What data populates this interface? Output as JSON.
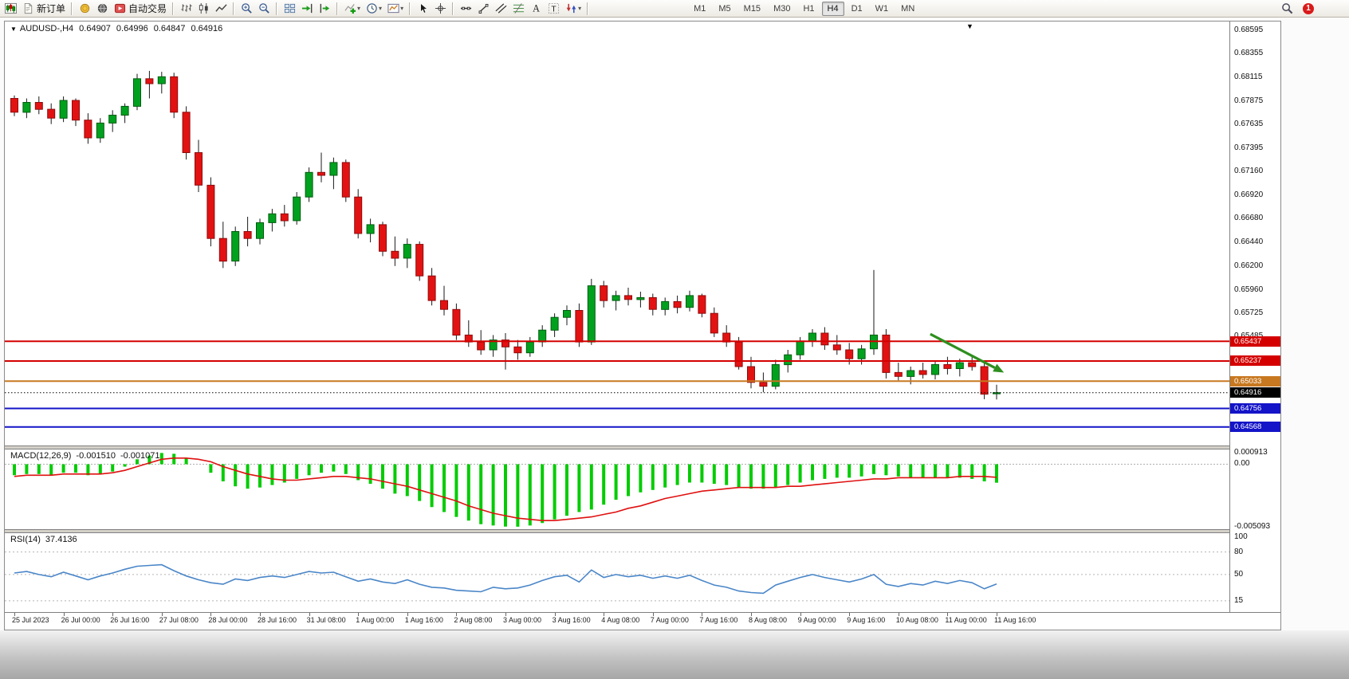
{
  "toolbar": {
    "badge_count": "1",
    "left_items": [
      {
        "name": "new-chart-button",
        "icon": "chart-candles"
      },
      {
        "name": "new-order-button",
        "icon": "doc-new",
        "label": "新订单"
      },
      {
        "sep": true
      },
      {
        "name": "quotes-button",
        "icon": "coin"
      },
      {
        "name": "community-button",
        "icon": "globe"
      },
      {
        "name": "autotrading-button",
        "icon": "autotrade",
        "label": "自动交易"
      },
      {
        "sep": true
      },
      {
        "name": "bars-mode-button",
        "icon": "bars-mode"
      },
      {
        "name": "candles-mode-button",
        "icon": "candles-mode"
      },
      {
        "name": "line-mode-button",
        "icon": "line-mode"
      },
      {
        "sep": true
      },
      {
        "name": "zoom-in-button",
        "icon": "zoom-in"
      },
      {
        "name": "zoom-out-button",
        "icon": "zoom-out"
      },
      {
        "sep": true
      },
      {
        "name": "tile-windows-button",
        "icon": "tiles"
      },
      {
        "name": "auto-scroll-button",
        "icon": "autoscroll"
      },
      {
        "name": "chart-shift-button",
        "icon": "chart-shift"
      },
      {
        "sep": true
      },
      {
        "name": "indicators-button",
        "icon": "indicator-plus",
        "dropdown": true
      },
      {
        "name": "periods-button",
        "icon": "clock",
        "dropdown": true
      },
      {
        "name": "templates-button",
        "icon": "template",
        "dropdown": true
      },
      {
        "sep": true
      },
      {
        "name": "cursor-button",
        "icon": "cursor"
      },
      {
        "name": "crosshair-button",
        "icon": "crosshair"
      },
      {
        "sep": true
      },
      {
        "name": "horizontal-line-button",
        "icon": "hline"
      },
      {
        "name": "trendline-button",
        "icon": "trendline"
      },
      {
        "name": "channel-button",
        "icon": "channel"
      },
      {
        "name": "fibonacci-button",
        "icon": "fibo"
      },
      {
        "name": "text-button",
        "icon": "text-a"
      },
      {
        "name": "label-button",
        "icon": "label-t"
      },
      {
        "name": "arrows-button",
        "icon": "arrows",
        "dropdown": true
      },
      {
        "sep": true
      }
    ],
    "timeframes": {
      "items": [
        {
          "label": "M1"
        },
        {
          "label": "M5"
        },
        {
          "label": "M15"
        },
        {
          "label": "M30"
        },
        {
          "label": "H1"
        },
        {
          "label": "H4",
          "active": true
        },
        {
          "label": "D1"
        },
        {
          "label": "W1"
        },
        {
          "label": "MN"
        }
      ]
    },
    "right_items": [
      {
        "name": "search-button",
        "icon": "magnifier"
      },
      {
        "name": "notifications-badge",
        "badge": true
      }
    ]
  },
  "chart_data": {
    "type": "candlestick",
    "title_display": "AUDUSD-,H4",
    "ohlc_display": {
      "open": "0.64907",
      "high": "0.64996",
      "low": "0.64847",
      "close": "0.64916"
    },
    "price_range": [
      0.6438,
      0.6868
    ],
    "price_axis_labels": [
      "0.68595",
      "0.68355",
      "0.68115",
      "0.67875",
      "0.67635",
      "0.67395",
      "0.67160",
      "0.66920",
      "0.66680",
      "0.66440",
      "0.66200",
      "0.65960",
      "0.65725",
      "0.65485"
    ],
    "time_labels": [
      "25 Jul 2023",
      "26 Jul 00:00",
      "26 Jul 16:00",
      "27 Jul 08:00",
      "28 Jul 00:00",
      "28 Jul 16:00",
      "31 Jul 08:00",
      "1 Aug 00:00",
      "1 Aug 16:00",
      "2 Aug 08:00",
      "3 Aug 00:00",
      "3 Aug 16:00",
      "4 Aug 08:00",
      "7 Aug 00:00",
      "7 Aug 16:00",
      "8 Aug 08:00",
      "9 Aug 00:00",
      "9 Aug 16:00",
      "10 Aug 08:00",
      "11 Aug 00:00",
      "11 Aug 16:00"
    ],
    "bars_per_time_label": 4,
    "colors": {
      "bull": "#00a11e",
      "bear": "#e31212",
      "bull_edge": "#005c10",
      "bear_edge": "#8f0b0b",
      "wick": "#1a1a1a"
    },
    "price_lines": [
      {
        "value": "0.65437",
        "price": 0.65437,
        "color": "#d40000",
        "width": 2,
        "style": "solid"
      },
      {
        "value": "0.65237",
        "price": 0.65237,
        "color": "#d40000",
        "width": 2,
        "style": "solid"
      },
      {
        "value": "0.65033",
        "price": 0.65033,
        "color": "#c87820",
        "width": 2,
        "style": "solid"
      },
      {
        "value": "0.64756",
        "price": 0.64756,
        "color": "#1414c8",
        "width": 2,
        "style": "solid"
      },
      {
        "value": "0.64568",
        "price": 0.64568,
        "color": "#1414c8",
        "width": 2,
        "style": "solid"
      }
    ],
    "current_price": {
      "value": "0.64916",
      "price": 0.64916,
      "color": "#000000"
    },
    "trend_arrow": {
      "from_bar": 74.6,
      "from_price": 0.6551,
      "to_bar": 80.6,
      "to_price": 0.6512,
      "color": "#2e8f1e"
    },
    "candles": [
      [
        0.679,
        0.6793,
        0.6772,
        0.6776
      ],
      [
        0.6776,
        0.679,
        0.677,
        0.6786
      ],
      [
        0.6786,
        0.6792,
        0.6774,
        0.6779
      ],
      [
        0.6779,
        0.6785,
        0.6764,
        0.677
      ],
      [
        0.677,
        0.6792,
        0.6766,
        0.6788
      ],
      [
        0.6788,
        0.679,
        0.6762,
        0.6768
      ],
      [
        0.6768,
        0.6775,
        0.6744,
        0.675
      ],
      [
        0.675,
        0.677,
        0.6745,
        0.6765
      ],
      [
        0.6765,
        0.6778,
        0.6756,
        0.6773
      ],
      [
        0.6773,
        0.6785,
        0.6765,
        0.6782
      ],
      [
        0.6782,
        0.6815,
        0.6778,
        0.681
      ],
      [
        0.681,
        0.6818,
        0.679,
        0.6805
      ],
      [
        0.6805,
        0.6817,
        0.6795,
        0.6812
      ],
      [
        0.6812,
        0.6816,
        0.677,
        0.6776
      ],
      [
        0.6776,
        0.6782,
        0.6728,
        0.6735
      ],
      [
        0.6735,
        0.6748,
        0.6695,
        0.6702
      ],
      [
        0.6702,
        0.671,
        0.664,
        0.6648
      ],
      [
        0.6648,
        0.6665,
        0.6618,
        0.6625
      ],
      [
        0.6625,
        0.666,
        0.662,
        0.6655
      ],
      [
        0.6655,
        0.667,
        0.664,
        0.6648
      ],
      [
        0.6648,
        0.6668,
        0.6642,
        0.6664
      ],
      [
        0.6664,
        0.6678,
        0.6655,
        0.6673
      ],
      [
        0.6673,
        0.6682,
        0.666,
        0.6666
      ],
      [
        0.6666,
        0.6695,
        0.6662,
        0.669
      ],
      [
        0.669,
        0.672,
        0.6685,
        0.6715
      ],
      [
        0.6715,
        0.6735,
        0.6705,
        0.6712
      ],
      [
        0.6712,
        0.673,
        0.6698,
        0.6725
      ],
      [
        0.6725,
        0.6728,
        0.6685,
        0.669
      ],
      [
        0.669,
        0.6698,
        0.6648,
        0.6653
      ],
      [
        0.6653,
        0.6668,
        0.6644,
        0.6662
      ],
      [
        0.6662,
        0.6665,
        0.663,
        0.6635
      ],
      [
        0.6635,
        0.665,
        0.662,
        0.6628
      ],
      [
        0.6628,
        0.6648,
        0.6618,
        0.6642
      ],
      [
        0.6642,
        0.6645,
        0.6605,
        0.661
      ],
      [
        0.661,
        0.6618,
        0.658,
        0.6585
      ],
      [
        0.6585,
        0.66,
        0.657,
        0.6576
      ],
      [
        0.6576,
        0.6582,
        0.6545,
        0.655
      ],
      [
        0.655,
        0.6565,
        0.6538,
        0.6543
      ],
      [
        0.6543,
        0.6555,
        0.653,
        0.6535
      ],
      [
        0.6535,
        0.655,
        0.6528,
        0.6545
      ],
      [
        0.6545,
        0.6552,
        0.6515,
        0.6538
      ],
      [
        0.6538,
        0.6545,
        0.6525,
        0.6532
      ],
      [
        0.6532,
        0.6548,
        0.6528,
        0.6543
      ],
      [
        0.6543,
        0.656,
        0.6538,
        0.6555
      ],
      [
        0.6555,
        0.6572,
        0.6548,
        0.6568
      ],
      [
        0.6568,
        0.658,
        0.656,
        0.6575
      ],
      [
        0.6575,
        0.6582,
        0.6538,
        0.6543
      ],
      [
        0.6543,
        0.6607,
        0.654,
        0.66
      ],
      [
        0.66,
        0.6605,
        0.6578,
        0.6585
      ],
      [
        0.6585,
        0.6595,
        0.6575,
        0.659
      ],
      [
        0.659,
        0.6598,
        0.658,
        0.6586
      ],
      [
        0.6586,
        0.6594,
        0.6578,
        0.6588
      ],
      [
        0.6588,
        0.6592,
        0.657,
        0.6576
      ],
      [
        0.6576,
        0.6588,
        0.657,
        0.6584
      ],
      [
        0.6584,
        0.659,
        0.6572,
        0.6578
      ],
      [
        0.6578,
        0.6595,
        0.6574,
        0.659
      ],
      [
        0.659,
        0.6592,
        0.6568,
        0.6572
      ],
      [
        0.6572,
        0.6578,
        0.6548,
        0.6552
      ],
      [
        0.6552,
        0.656,
        0.6538,
        0.6543
      ],
      [
        0.6543,
        0.6548,
        0.6515,
        0.6518
      ],
      [
        0.6518,
        0.6528,
        0.6496,
        0.6502
      ],
      [
        0.6502,
        0.6512,
        0.6492,
        0.6498
      ],
      [
        0.6498,
        0.6525,
        0.6495,
        0.652
      ],
      [
        0.652,
        0.6535,
        0.6512,
        0.653
      ],
      [
        0.653,
        0.6548,
        0.6525,
        0.6544
      ],
      [
        0.6544,
        0.6556,
        0.6538,
        0.6552
      ],
      [
        0.6552,
        0.6558,
        0.6535,
        0.654
      ],
      [
        0.654,
        0.655,
        0.653,
        0.6535
      ],
      [
        0.6535,
        0.6542,
        0.652,
        0.6526
      ],
      [
        0.6526,
        0.654,
        0.652,
        0.6536
      ],
      [
        0.6536,
        0.6616,
        0.653,
        0.655
      ],
      [
        0.655,
        0.6556,
        0.6506,
        0.6512
      ],
      [
        0.6512,
        0.6522,
        0.6504,
        0.6508
      ],
      [
        0.6508,
        0.6518,
        0.65,
        0.6514
      ],
      [
        0.6514,
        0.6522,
        0.6506,
        0.651
      ],
      [
        0.651,
        0.6524,
        0.6505,
        0.652
      ],
      [
        0.652,
        0.6528,
        0.651,
        0.6516
      ],
      [
        0.6516,
        0.6526,
        0.6508,
        0.6522
      ],
      [
        0.6522,
        0.653,
        0.6514,
        0.6518
      ],
      [
        0.6518,
        0.6524,
        0.6485,
        0.649
      ],
      [
        0.64907,
        0.64996,
        0.64847,
        0.64916
      ]
    ],
    "indicators": {
      "macd": {
        "label": "MACD(12,26,9)",
        "value_main": "-0.001510",
        "value_signal": "-0.001071",
        "axis_labels": [
          "0.000913",
          "0.00",
          "-0.005093"
        ],
        "range": [
          -0.0053,
          0.0012
        ],
        "histogram_color": "#00cc00",
        "signal_color": "#e01010",
        "histogram": [
          -0.0009,
          -0.0008,
          -0.0008,
          -0.0009,
          -0.0007,
          -0.0007,
          -0.0009,
          -0.0008,
          -0.0006,
          -0.0002,
          0.0004,
          0.0007,
          0.000913,
          0.00085,
          0.0005,
          0.0,
          -0.0007,
          -0.0014,
          -0.0018,
          -0.002,
          -0.0019,
          -0.0017,
          -0.0015,
          -0.0012,
          -0.0009,
          -0.0007,
          -0.0006,
          -0.0008,
          -0.0013,
          -0.0016,
          -0.002,
          -0.0024,
          -0.0026,
          -0.003,
          -0.0035,
          -0.0039,
          -0.0043,
          -0.0046,
          -0.0049,
          -0.005,
          -0.005093,
          -0.0051,
          -0.005,
          -0.0048,
          -0.0045,
          -0.0042,
          -0.0039,
          -0.0037,
          -0.0033,
          -0.0029,
          -0.0026,
          -0.0023,
          -0.0021,
          -0.0019,
          -0.0017,
          -0.0015,
          -0.0015,
          -0.0016,
          -0.0017,
          -0.0019,
          -0.002,
          -0.002,
          -0.0019,
          -0.0017,
          -0.0015,
          -0.0013,
          -0.0012,
          -0.0011,
          -0.0011,
          -0.001,
          -0.0008,
          -0.0009,
          -0.001,
          -0.0011,
          -0.0011,
          -0.0011,
          -0.0011,
          -0.0011,
          -0.0012,
          -0.0014,
          -0.00151
        ],
        "signal": [
          -0.001,
          -0.0009,
          -0.0009,
          -0.0009,
          -0.0008,
          -0.0008,
          -0.0008,
          -0.0008,
          -0.0007,
          -0.0005,
          -0.0002,
          0.0001,
          0.0004,
          0.0005,
          0.0005,
          0.0004,
          0.0002,
          -0.0002,
          -0.0005,
          -0.0008,
          -0.001,
          -0.0012,
          -0.0013,
          -0.0013,
          -0.0012,
          -0.0011,
          -0.001,
          -0.001,
          -0.0011,
          -0.0012,
          -0.0014,
          -0.0016,
          -0.0018,
          -0.0021,
          -0.0024,
          -0.0027,
          -0.003,
          -0.0034,
          -0.0037,
          -0.004,
          -0.0042,
          -0.0044,
          -0.0045,
          -0.0046,
          -0.0046,
          -0.0045,
          -0.0044,
          -0.0043,
          -0.0041,
          -0.0039,
          -0.0036,
          -0.0034,
          -0.0031,
          -0.0028,
          -0.0026,
          -0.0024,
          -0.0022,
          -0.0021,
          -0.002,
          -0.0019,
          -0.0019,
          -0.0019,
          -0.0019,
          -0.0018,
          -0.0018,
          -0.0017,
          -0.0016,
          -0.0015,
          -0.0014,
          -0.0013,
          -0.0012,
          -0.0012,
          -0.0011,
          -0.0011,
          -0.0011,
          -0.0011,
          -0.0011,
          -0.001,
          -0.001,
          -0.001,
          -0.001071
        ]
      },
      "rsi": {
        "label": "RSI(14)",
        "value": "37.4136",
        "axis_labels": [
          "100",
          "80",
          "50",
          "15"
        ],
        "levels": [
          80,
          50,
          15
        ],
        "range": [
          0,
          105
        ],
        "line_color": "#4a86c8",
        "values": [
          52,
          54,
          50,
          47,
          53,
          48,
          43,
          48,
          52,
          57,
          61,
          62,
          63,
          55,
          48,
          43,
          39,
          37,
          44,
          42,
          46,
          48,
          46,
          50,
          54,
          52,
          53,
          47,
          41,
          44,
          40,
          38,
          43,
          37,
          33,
          32,
          29,
          28,
          27,
          33,
          31,
          32,
          36,
          42,
          47,
          49,
          40,
          56,
          46,
          50,
          47,
          49,
          45,
          48,
          45,
          49,
          42,
          36,
          33,
          28,
          26,
          25,
          36,
          41,
          46,
          50,
          46,
          43,
          40,
          44,
          50,
          37,
          34,
          38,
          36,
          41,
          38,
          42,
          39,
          31,
          37.4136
        ]
      }
    }
  }
}
